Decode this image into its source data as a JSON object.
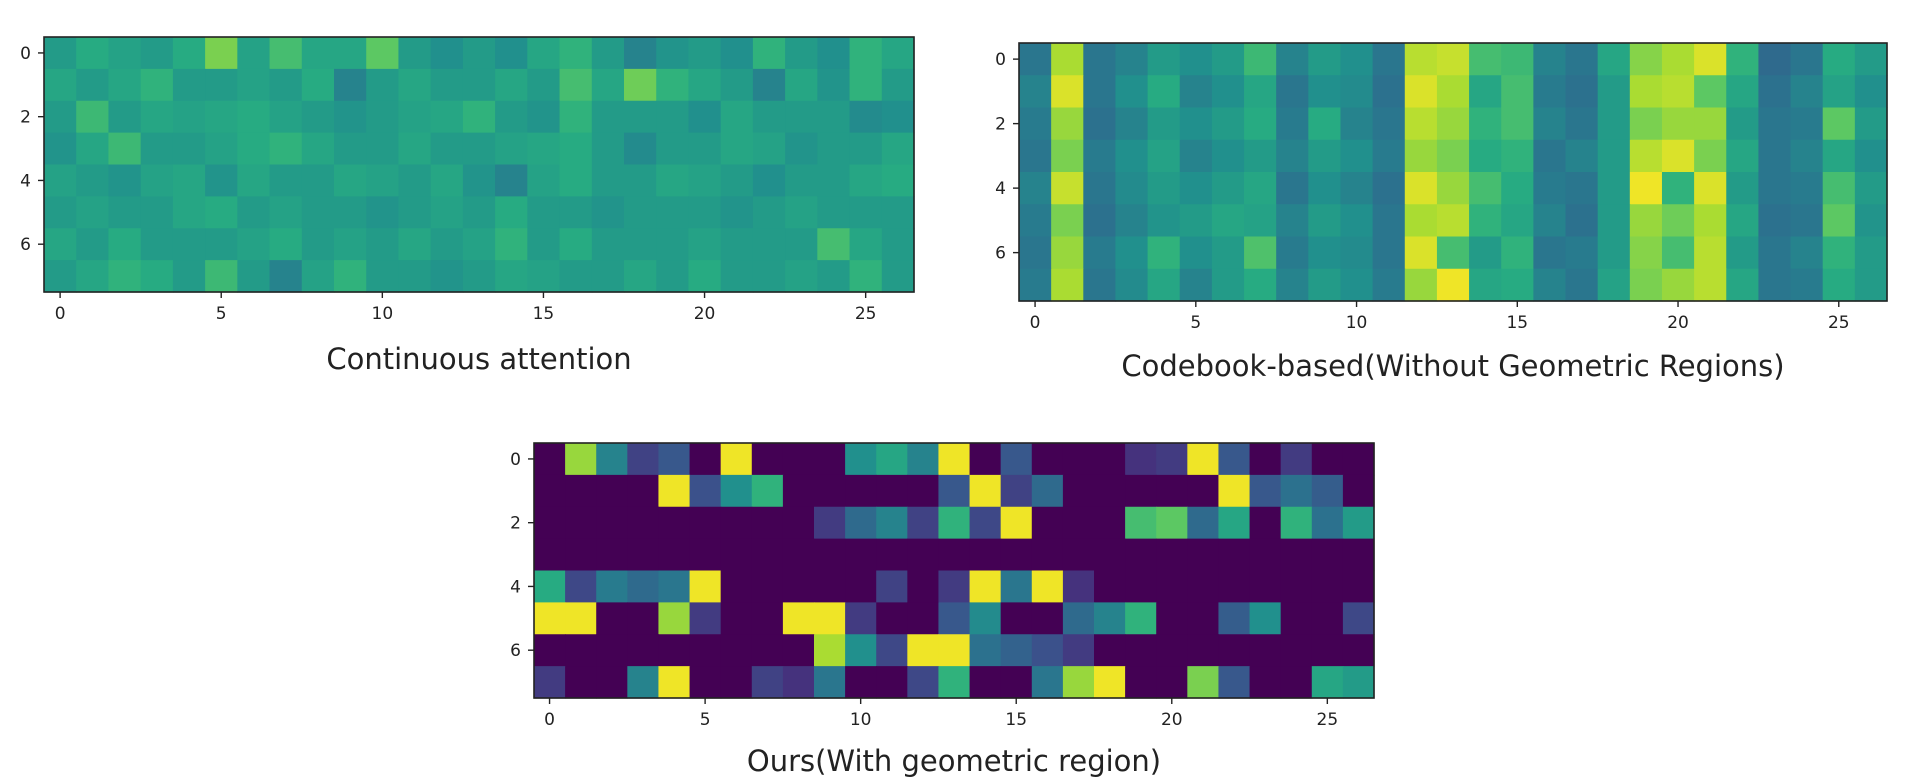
{
  "chart_data": [
    {
      "type": "heatmap",
      "title": "Continuous attention",
      "colormap": "viridis",
      "xticks": [
        0,
        5,
        10,
        15,
        20,
        25
      ],
      "yticks": [
        0,
        2,
        4,
        6
      ],
      "rows": 8,
      "cols": 27,
      "values": [
        [
          0.55,
          0.62,
          0.58,
          0.55,
          0.62,
          0.8,
          0.58,
          0.7,
          0.6,
          0.6,
          0.75,
          0.55,
          0.5,
          0.55,
          0.5,
          0.6,
          0.65,
          0.55,
          0.45,
          0.52,
          0.55,
          0.5,
          0.65,
          0.55,
          0.5,
          0.65,
          0.6
        ],
        [
          0.6,
          0.55,
          0.6,
          0.65,
          0.55,
          0.55,
          0.58,
          0.55,
          0.62,
          0.45,
          0.55,
          0.6,
          0.55,
          0.55,
          0.6,
          0.55,
          0.7,
          0.6,
          0.78,
          0.65,
          0.6,
          0.55,
          0.45,
          0.6,
          0.52,
          0.65,
          0.55
        ],
        [
          0.55,
          0.68,
          0.55,
          0.6,
          0.58,
          0.6,
          0.62,
          0.58,
          0.55,
          0.52,
          0.55,
          0.58,
          0.6,
          0.65,
          0.55,
          0.52,
          0.65,
          0.55,
          0.55,
          0.55,
          0.5,
          0.6,
          0.55,
          0.55,
          0.55,
          0.48,
          0.5
        ],
        [
          0.52,
          0.6,
          0.68,
          0.55,
          0.55,
          0.58,
          0.62,
          0.65,
          0.6,
          0.55,
          0.55,
          0.6,
          0.55,
          0.55,
          0.58,
          0.6,
          0.62,
          0.55,
          0.48,
          0.55,
          0.55,
          0.6,
          0.58,
          0.52,
          0.55,
          0.55,
          0.6
        ],
        [
          0.58,
          0.55,
          0.52,
          0.58,
          0.6,
          0.52,
          0.6,
          0.55,
          0.55,
          0.6,
          0.58,
          0.55,
          0.6,
          0.52,
          0.45,
          0.58,
          0.62,
          0.55,
          0.55,
          0.6,
          0.58,
          0.55,
          0.5,
          0.55,
          0.55,
          0.6,
          0.62
        ],
        [
          0.55,
          0.58,
          0.55,
          0.55,
          0.6,
          0.62,
          0.55,
          0.58,
          0.55,
          0.55,
          0.52,
          0.55,
          0.58,
          0.55,
          0.62,
          0.55,
          0.55,
          0.52,
          0.55,
          0.55,
          0.55,
          0.52,
          0.55,
          0.58,
          0.55,
          0.55,
          0.55
        ],
        [
          0.6,
          0.55,
          0.62,
          0.55,
          0.55,
          0.55,
          0.58,
          0.62,
          0.55,
          0.58,
          0.55,
          0.6,
          0.55,
          0.58,
          0.65,
          0.55,
          0.62,
          0.55,
          0.55,
          0.55,
          0.58,
          0.55,
          0.55,
          0.55,
          0.7,
          0.6,
          0.55
        ],
        [
          0.55,
          0.6,
          0.65,
          0.62,
          0.55,
          0.68,
          0.55,
          0.45,
          0.58,
          0.65,
          0.55,
          0.55,
          0.52,
          0.55,
          0.6,
          0.58,
          0.55,
          0.55,
          0.6,
          0.55,
          0.62,
          0.55,
          0.55,
          0.58,
          0.55,
          0.65,
          0.55
        ]
      ]
    },
    {
      "type": "heatmap",
      "title": "Codebook-based(Without Geometric Regions)",
      "colormap": "viridis",
      "xticks": [
        0,
        5,
        10,
        15,
        20,
        25
      ],
      "yticks": [
        0,
        2,
        4,
        6
      ],
      "rows": 8,
      "cols": 27,
      "values": [
        [
          0.4,
          0.88,
          0.4,
          0.45,
          0.55,
          0.5,
          0.55,
          0.68,
          0.45,
          0.55,
          0.5,
          0.4,
          0.9,
          0.92,
          0.7,
          0.68,
          0.45,
          0.4,
          0.6,
          0.82,
          0.88,
          0.95,
          0.65,
          0.35,
          0.4,
          0.62,
          0.55
        ],
        [
          0.45,
          0.95,
          0.4,
          0.5,
          0.62,
          0.45,
          0.5,
          0.6,
          0.4,
          0.5,
          0.48,
          0.38,
          0.95,
          0.88,
          0.6,
          0.7,
          0.42,
          0.38,
          0.55,
          0.88,
          0.9,
          0.75,
          0.6,
          0.38,
          0.45,
          0.58,
          0.5
        ],
        [
          0.42,
          0.85,
          0.38,
          0.45,
          0.55,
          0.5,
          0.55,
          0.62,
          0.42,
          0.62,
          0.45,
          0.4,
          0.9,
          0.85,
          0.65,
          0.7,
          0.45,
          0.4,
          0.55,
          0.8,
          0.85,
          0.85,
          0.55,
          0.4,
          0.42,
          0.75,
          0.55
        ],
        [
          0.4,
          0.8,
          0.42,
          0.5,
          0.58,
          0.45,
          0.5,
          0.55,
          0.45,
          0.55,
          0.5,
          0.42,
          0.85,
          0.8,
          0.62,
          0.65,
          0.4,
          0.45,
          0.55,
          0.9,
          0.95,
          0.8,
          0.6,
          0.4,
          0.45,
          0.6,
          0.5
        ],
        [
          0.45,
          0.92,
          0.4,
          0.48,
          0.55,
          0.5,
          0.55,
          0.6,
          0.4,
          0.5,
          0.45,
          0.38,
          0.95,
          0.85,
          0.7,
          0.62,
          0.42,
          0.4,
          0.55,
          0.98,
          0.65,
          0.95,
          0.55,
          0.4,
          0.42,
          0.7,
          0.55
        ],
        [
          0.42,
          0.8,
          0.38,
          0.45,
          0.52,
          0.55,
          0.6,
          0.58,
          0.45,
          0.55,
          0.5,
          0.4,
          0.88,
          0.9,
          0.65,
          0.6,
          0.45,
          0.38,
          0.55,
          0.85,
          0.78,
          0.88,
          0.6,
          0.38,
          0.4,
          0.75,
          0.52
        ],
        [
          0.4,
          0.85,
          0.42,
          0.5,
          0.65,
          0.5,
          0.55,
          0.72,
          0.42,
          0.5,
          0.48,
          0.4,
          0.95,
          0.7,
          0.55,
          0.65,
          0.4,
          0.42,
          0.55,
          0.82,
          0.7,
          0.9,
          0.55,
          0.4,
          0.45,
          0.65,
          0.55
        ],
        [
          0.42,
          0.88,
          0.4,
          0.48,
          0.6,
          0.45,
          0.55,
          0.62,
          0.45,
          0.55,
          0.5,
          0.42,
          0.85,
          0.98,
          0.6,
          0.62,
          0.45,
          0.4,
          0.58,
          0.8,
          0.85,
          0.9,
          0.6,
          0.4,
          0.42,
          0.62,
          0.55
        ]
      ]
    },
    {
      "type": "heatmap",
      "title": "Ours(With geometric region)",
      "colormap": "viridis",
      "xticks": [
        0,
        5,
        10,
        15,
        20,
        25
      ],
      "yticks": [
        0,
        2,
        4,
        6
      ],
      "rows": 8,
      "cols": 27,
      "values": [
        [
          0.0,
          0.85,
          0.45,
          0.2,
          0.28,
          0.0,
          0.98,
          0.0,
          0.0,
          0.0,
          0.5,
          0.6,
          0.45,
          0.98,
          0.0,
          0.28,
          0.0,
          0.0,
          0.0,
          0.15,
          0.18,
          0.98,
          0.28,
          0.0,
          0.18,
          0.0,
          0.0
        ],
        [
          0.0,
          0.0,
          0.0,
          0.0,
          0.98,
          0.25,
          0.5,
          0.65,
          0.0,
          0.0,
          0.0,
          0.0,
          0.0,
          0.28,
          0.98,
          0.2,
          0.35,
          0.0,
          0.0,
          0.0,
          0.0,
          0.0,
          0.98,
          0.28,
          0.38,
          0.3,
          0.0
        ],
        [
          0.0,
          0.0,
          0.0,
          0.0,
          0.0,
          0.0,
          0.0,
          0.0,
          0.0,
          0.18,
          0.35,
          0.45,
          0.2,
          0.65,
          0.22,
          0.98,
          0.0,
          0.0,
          0.0,
          0.7,
          0.75,
          0.35,
          0.6,
          0.0,
          0.65,
          0.38,
          0.55
        ],
        [
          0.0,
          0.0,
          0.0,
          0.0,
          0.0,
          0.0,
          0.0,
          0.0,
          0.0,
          0.0,
          0.0,
          0.0,
          0.0,
          0.0,
          0.0,
          0.0,
          0.0,
          0.0,
          0.0,
          0.0,
          0.0,
          0.0,
          0.0,
          0.0,
          0.0,
          0.0,
          0.0
        ],
        [
          0.62,
          0.22,
          0.42,
          0.35,
          0.4,
          0.98,
          0.0,
          0.0,
          0.0,
          0.0,
          0.0,
          0.2,
          0.0,
          0.18,
          0.98,
          0.4,
          0.98,
          0.15,
          0.0,
          0.0,
          0.0,
          0.0,
          0.0,
          0.0,
          0.0,
          0.0,
          0.0
        ],
        [
          0.98,
          0.98,
          0.0,
          0.0,
          0.85,
          0.18,
          0.0,
          0.0,
          0.98,
          0.98,
          0.18,
          0.0,
          0.0,
          0.28,
          0.48,
          0.0,
          0.0,
          0.35,
          0.45,
          0.65,
          0.0,
          0.0,
          0.3,
          0.5,
          0.0,
          0.0,
          0.22
        ],
        [
          0.0,
          0.0,
          0.0,
          0.0,
          0.0,
          0.0,
          0.0,
          0.0,
          0.0,
          0.88,
          0.5,
          0.22,
          0.98,
          0.98,
          0.38,
          0.32,
          0.25,
          0.18,
          0.0,
          0.0,
          0.0,
          0.0,
          0.0,
          0.0,
          0.0,
          0.0,
          0.0
        ],
        [
          0.18,
          0.0,
          0.0,
          0.45,
          0.98,
          0.0,
          0.0,
          0.2,
          0.15,
          0.4,
          0.0,
          0.0,
          0.22,
          0.65,
          0.0,
          0.0,
          0.4,
          0.85,
          0.98,
          0.0,
          0.0,
          0.8,
          0.28,
          0.0,
          0.0,
          0.6,
          0.55
        ]
      ]
    }
  ]
}
